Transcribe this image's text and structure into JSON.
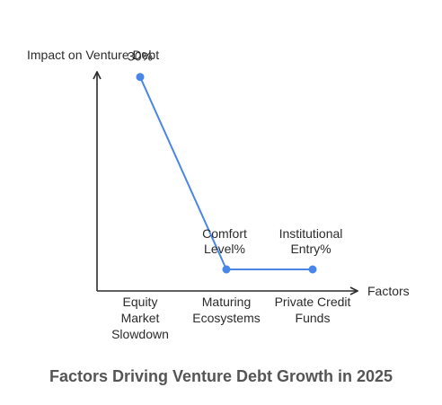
{
  "chart_data": {
    "type": "line",
    "title": "Factors Driving Venture Debt Growth in 2025",
    "ylabel": "Impact on Venture Debt",
    "xlabel": "Factors",
    "categories": [
      [
        "Equity",
        "Market",
        "Slowdown"
      ],
      [
        "Maturing",
        "Ecosystems"
      ],
      [
        "Private Credit",
        "Funds"
      ]
    ],
    "series": [
      {
        "values": [
          30,
          0,
          0
        ],
        "labels": [
          [
            "30%"
          ],
          [
            "Comfort",
            "Level%"
          ],
          [
            "Institutional",
            "Entry%"
          ]
        ]
      }
    ],
    "ylim": [
      0,
      35
    ],
    "grid": false,
    "colors": {
      "line": "#4a86e8",
      "axis": "#2b2b2b"
    }
  }
}
